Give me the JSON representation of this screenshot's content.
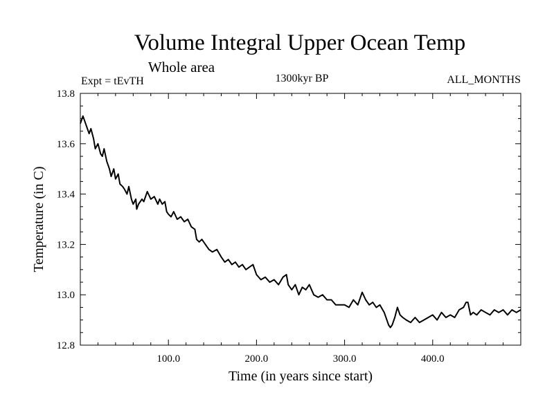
{
  "chart_data": {
    "type": "line",
    "title": "Volume Integral Upper Ocean Temp",
    "subtitle": "Whole area",
    "experiment": "Expt = tEvTH",
    "period": "1300kyr BP",
    "months": "ALL_MONTHS",
    "xlabel": "Time (in years since start)",
    "ylabel": "Temperature (in C)",
    "xlim": [
      0,
      500
    ],
    "ylim": [
      12.8,
      13.8
    ],
    "x_ticks": [
      100,
      200,
      300,
      400
    ],
    "x_tick_labels": [
      "100.0",
      "200.0",
      "300.0",
      "400.0"
    ],
    "y_ticks": [
      12.8,
      13.0,
      13.2,
      13.4,
      13.6,
      13.8
    ],
    "y_tick_labels": [
      "12.8",
      "13.0",
      "13.2",
      "13.4",
      "13.6",
      "13.8"
    ],
    "grid": false,
    "series": [
      {
        "name": "Temperature",
        "x": [
          0,
          3,
          6,
          10,
          12,
          15,
          17,
          20,
          23,
          25,
          27,
          30,
          33,
          35,
          38,
          40,
          43,
          45,
          48,
          50,
          53,
          55,
          58,
          60,
          63,
          64,
          66,
          70,
          72,
          76,
          80,
          84,
          88,
          90,
          93,
          96,
          98,
          100,
          103,
          106,
          110,
          114,
          118,
          122,
          126,
          130,
          132,
          135,
          138,
          142,
          146,
          150,
          155,
          160,
          164,
          168,
          172,
          176,
          180,
          184,
          188,
          192,
          196,
          200,
          205,
          210,
          215,
          220,
          225,
          230,
          234,
          236,
          240,
          244,
          248,
          252,
          256,
          260,
          265,
          270,
          275,
          280,
          285,
          290,
          295,
          300,
          305,
          310,
          315,
          318,
          320,
          324,
          328,
          332,
          336,
          340,
          345,
          350,
          352,
          354,
          357,
          360,
          363,
          366,
          370,
          375,
          380,
          385,
          390,
          395,
          400,
          405,
          410,
          415,
          420,
          425,
          430,
          435,
          438,
          440,
          443,
          446,
          450,
          455,
          460,
          465,
          470,
          475,
          480,
          485,
          490,
          495,
          500
        ],
        "values": [
          13.68,
          13.71,
          13.68,
          13.64,
          13.66,
          13.62,
          13.58,
          13.6,
          13.56,
          13.55,
          13.58,
          13.53,
          13.5,
          13.47,
          13.5,
          13.46,
          13.48,
          13.44,
          13.43,
          13.42,
          13.4,
          13.43,
          13.38,
          13.36,
          13.38,
          13.34,
          13.36,
          13.38,
          13.37,
          13.41,
          13.38,
          13.39,
          13.36,
          13.38,
          13.36,
          13.37,
          13.33,
          13.32,
          13.31,
          13.33,
          13.3,
          13.31,
          13.29,
          13.3,
          13.27,
          13.26,
          13.22,
          13.21,
          13.22,
          13.2,
          13.18,
          13.17,
          13.18,
          13.15,
          13.13,
          13.14,
          13.12,
          13.13,
          13.11,
          13.12,
          13.1,
          13.11,
          13.12,
          13.08,
          13.06,
          13.07,
          13.05,
          13.06,
          13.04,
          13.07,
          13.08,
          13.04,
          13.02,
          13.04,
          13.0,
          13.03,
          13.02,
          13.04,
          13.0,
          12.99,
          13.0,
          12.98,
          12.98,
          12.96,
          12.96,
          12.96,
          12.95,
          12.98,
          12.96,
          12.99,
          13.01,
          12.98,
          12.96,
          12.97,
          12.95,
          12.96,
          12.93,
          12.88,
          12.87,
          12.88,
          12.91,
          12.95,
          12.92,
          12.91,
          12.9,
          12.89,
          12.91,
          12.89,
          12.9,
          12.91,
          12.92,
          12.9,
          12.93,
          12.91,
          12.92,
          12.91,
          12.94,
          12.95,
          12.97,
          12.97,
          12.92,
          12.93,
          12.92,
          12.94,
          12.93,
          12.92,
          12.94,
          12.93,
          12.94,
          12.92,
          12.94,
          12.93,
          12.94
        ]
      }
    ]
  }
}
